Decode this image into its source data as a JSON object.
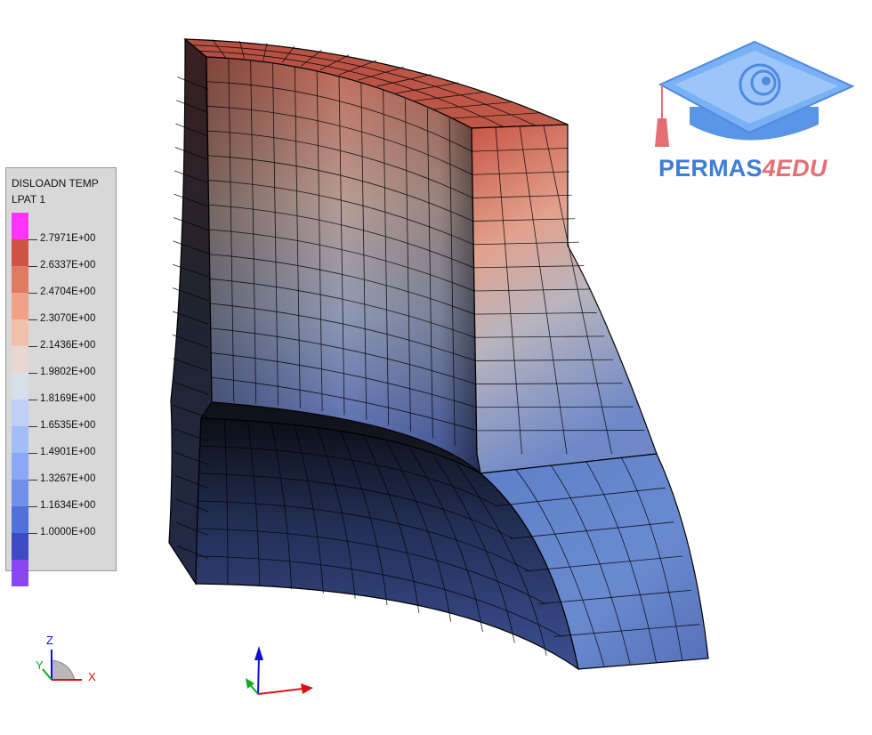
{
  "legend": {
    "title": "DISLOADN TEMP",
    "subtitle": "LPAT 1",
    "colors": [
      "#ff33ff",
      "#d05445",
      "#e07b63",
      "#f1a187",
      "#f3c1ab",
      "#e6d8d0",
      "#d6dfea",
      "#bfd0f4",
      "#a3bdf8",
      "#8ba8f4",
      "#7190ea",
      "#5270da",
      "#3e4ac4",
      "#8a46f2"
    ],
    "values": [
      "2.7971E+00",
      "2.6337E+00",
      "2.4704E+00",
      "2.3070E+00",
      "2.1436E+00",
      "1.9802E+00",
      "1.8169E+00",
      "1.6535E+00",
      "1.4901E+00",
      "1.3267E+00",
      "1.1634E+00",
      "1.0000E+00"
    ]
  },
  "logo": {
    "name_part1": "PERMAS",
    "name_part2": "4EDU",
    "primary_color": "#3f7ed6",
    "accent_color": "#e46f74"
  },
  "triad": {
    "z_label": "Z",
    "y_label": "Y",
    "x_label": "X",
    "x_color": "#dd1111",
    "y_color": "#11aa22",
    "z_color": "#1111cc"
  },
  "model": {
    "top_color": "#c4584a",
    "inner_wall_color": "#9a8c8a",
    "bottom_color": "#3e4c8c"
  }
}
